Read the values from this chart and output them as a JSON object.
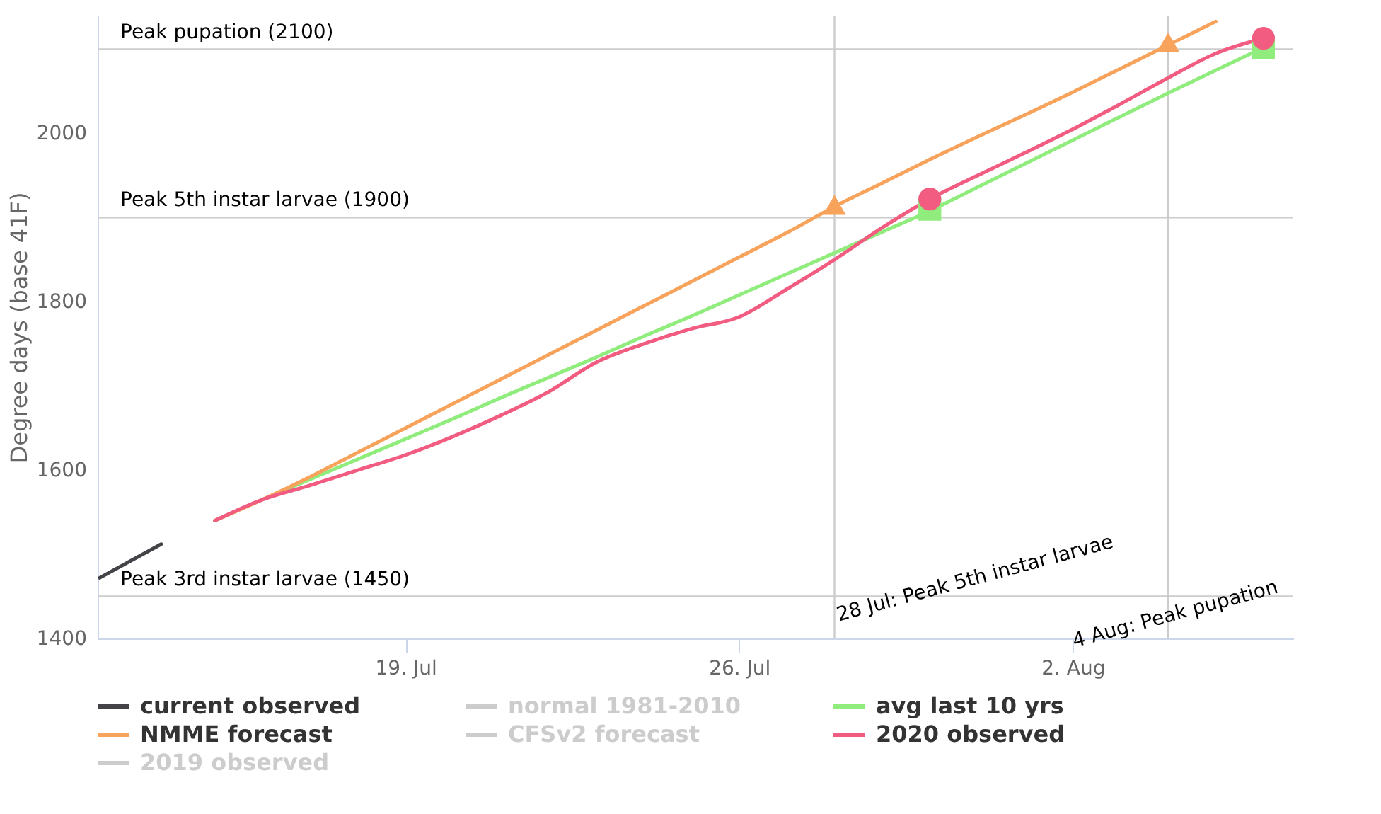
{
  "chart_data": {
    "type": "line",
    "ylabel": "Degree days (base 41F)",
    "x": [
      "2020-07-15",
      "2020-07-16",
      "2020-07-17",
      "2020-07-18",
      "2020-07-19",
      "2020-07-20",
      "2020-07-21",
      "2020-07-22",
      "2020-07-23",
      "2020-07-24",
      "2020-07-25",
      "2020-07-26",
      "2020-07-27",
      "2020-07-28",
      "2020-07-29",
      "2020-07-30",
      "2020-07-31",
      "2020-08-01",
      "2020-08-02",
      "2020-08-03",
      "2020-08-04",
      "2020-08-05",
      "2020-08-06"
    ],
    "series": [
      {
        "name": "current observed",
        "color": "#434348",
        "x": [
          "2020-07-12T14:00",
          "2020-07-13T21:00"
        ],
        "values": [
          1472,
          1512
        ]
      },
      {
        "name": "normal 1981-2010",
        "color": "#cccccc",
        "values": [
          null,
          null,
          null,
          null,
          null,
          null,
          null,
          null,
          null,
          null,
          null,
          null,
          null,
          null,
          null,
          null,
          null,
          null,
          null,
          null,
          null,
          null,
          null
        ]
      },
      {
        "name": "avg last 10 yrs",
        "color": "#90ed7d",
        "values": [
          1540,
          1565,
          1589,
          1613,
          1637,
          1661,
          1686,
          1710,
          1734,
          1759,
          1783,
          1808,
          1833,
          1858,
          1883,
          1908,
          1936,
          1964,
          1992,
          2020,
          2048,
          2075,
          2102
        ]
      },
      {
        "name": "NMME forecast",
        "color": "#f7a35c",
        "values": [
          1540,
          1565,
          1592,
          1621,
          1650,
          1679,
          1708,
          1737,
          1766,
          1795,
          1824,
          1853,
          1882,
          1913,
          1941,
          1969,
          1996,
          2022,
          2049,
          2077,
          2105,
          2133,
          null
        ]
      },
      {
        "name": "CFSv2 forecast",
        "color": "#cccccc",
        "values": [
          null,
          null,
          null,
          null,
          null,
          null,
          null,
          null,
          null,
          null,
          null,
          null,
          null,
          null,
          null,
          null,
          null,
          null,
          null,
          null,
          null,
          null,
          null
        ]
      },
      {
        "name": "2020 observed",
        "color": "#f15c80",
        "values": [
          1540,
          1565,
          1582,
          1600,
          1618,
          1640,
          1665,
          1693,
          1728,
          1750,
          1768,
          1782,
          1815,
          1850,
          1888,
          1922,
          1950,
          1977,
          2005,
          2035,
          2066,
          2095,
          2113
        ]
      },
      {
        "name": "2019 observed",
        "color": "#cccccc",
        "values": [
          null,
          null,
          null,
          null,
          null,
          null,
          null,
          null,
          null,
          null,
          null,
          null,
          null,
          null,
          null,
          null,
          null,
          null,
          null,
          null,
          null,
          null,
          null
        ]
      },
      {
        "type": "scatter",
        "marker": "triangle",
        "color": "#f7a35c",
        "x": [
          "2020-07-28",
          "2020-08-04"
        ],
        "values": [
          1915,
          2108
        ]
      },
      {
        "type": "scatter",
        "marker": "square",
        "color": "#90ed7d",
        "x": [
          "2020-07-30",
          "2020-08-06"
        ],
        "values": [
          1910,
          2102
        ]
      },
      {
        "type": "scatter",
        "marker": "circle",
        "color": "#f15c80",
        "x": [
          "2020-07-30",
          "2020-08-06"
        ],
        "values": [
          1922,
          2113
        ]
      }
    ],
    "xlim": [
      "2020-07-12T13:00",
      "2020-08-06T15:00"
    ],
    "xticks": [
      {
        "value": "2020-07-19",
        "label": "19. Jul"
      },
      {
        "value": "2020-07-26",
        "label": "26. Jul"
      },
      {
        "value": "2020-08-02",
        "label": "2. Aug"
      }
    ],
    "ylim": [
      1400,
      2140
    ],
    "yticks": [
      1400,
      1600,
      1800,
      2000
    ],
    "ref_lines": [
      {
        "axis": "y",
        "value": 2100,
        "label": "Peak pupation (2100)",
        "color": "#cccccc"
      },
      {
        "axis": "y",
        "value": 1900,
        "label": "Peak 5th instar larvae (1900)",
        "color": "#cccccc"
      },
      {
        "axis": "y",
        "value": 1450,
        "label": "Peak 3rd instar larvae (1450)",
        "color": "#cccccc"
      },
      {
        "axis": "x",
        "value": "2020-07-28",
        "label": "28 Jul: Peak 5th instar larvae",
        "color": "#cccccc"
      },
      {
        "axis": "x",
        "value": "2020-08-04",
        "label": "4 Aug: Peak pupation",
        "color": "#cccccc"
      }
    ],
    "grid": false,
    "legend": "bottom",
    "line_style": "solid"
  }
}
